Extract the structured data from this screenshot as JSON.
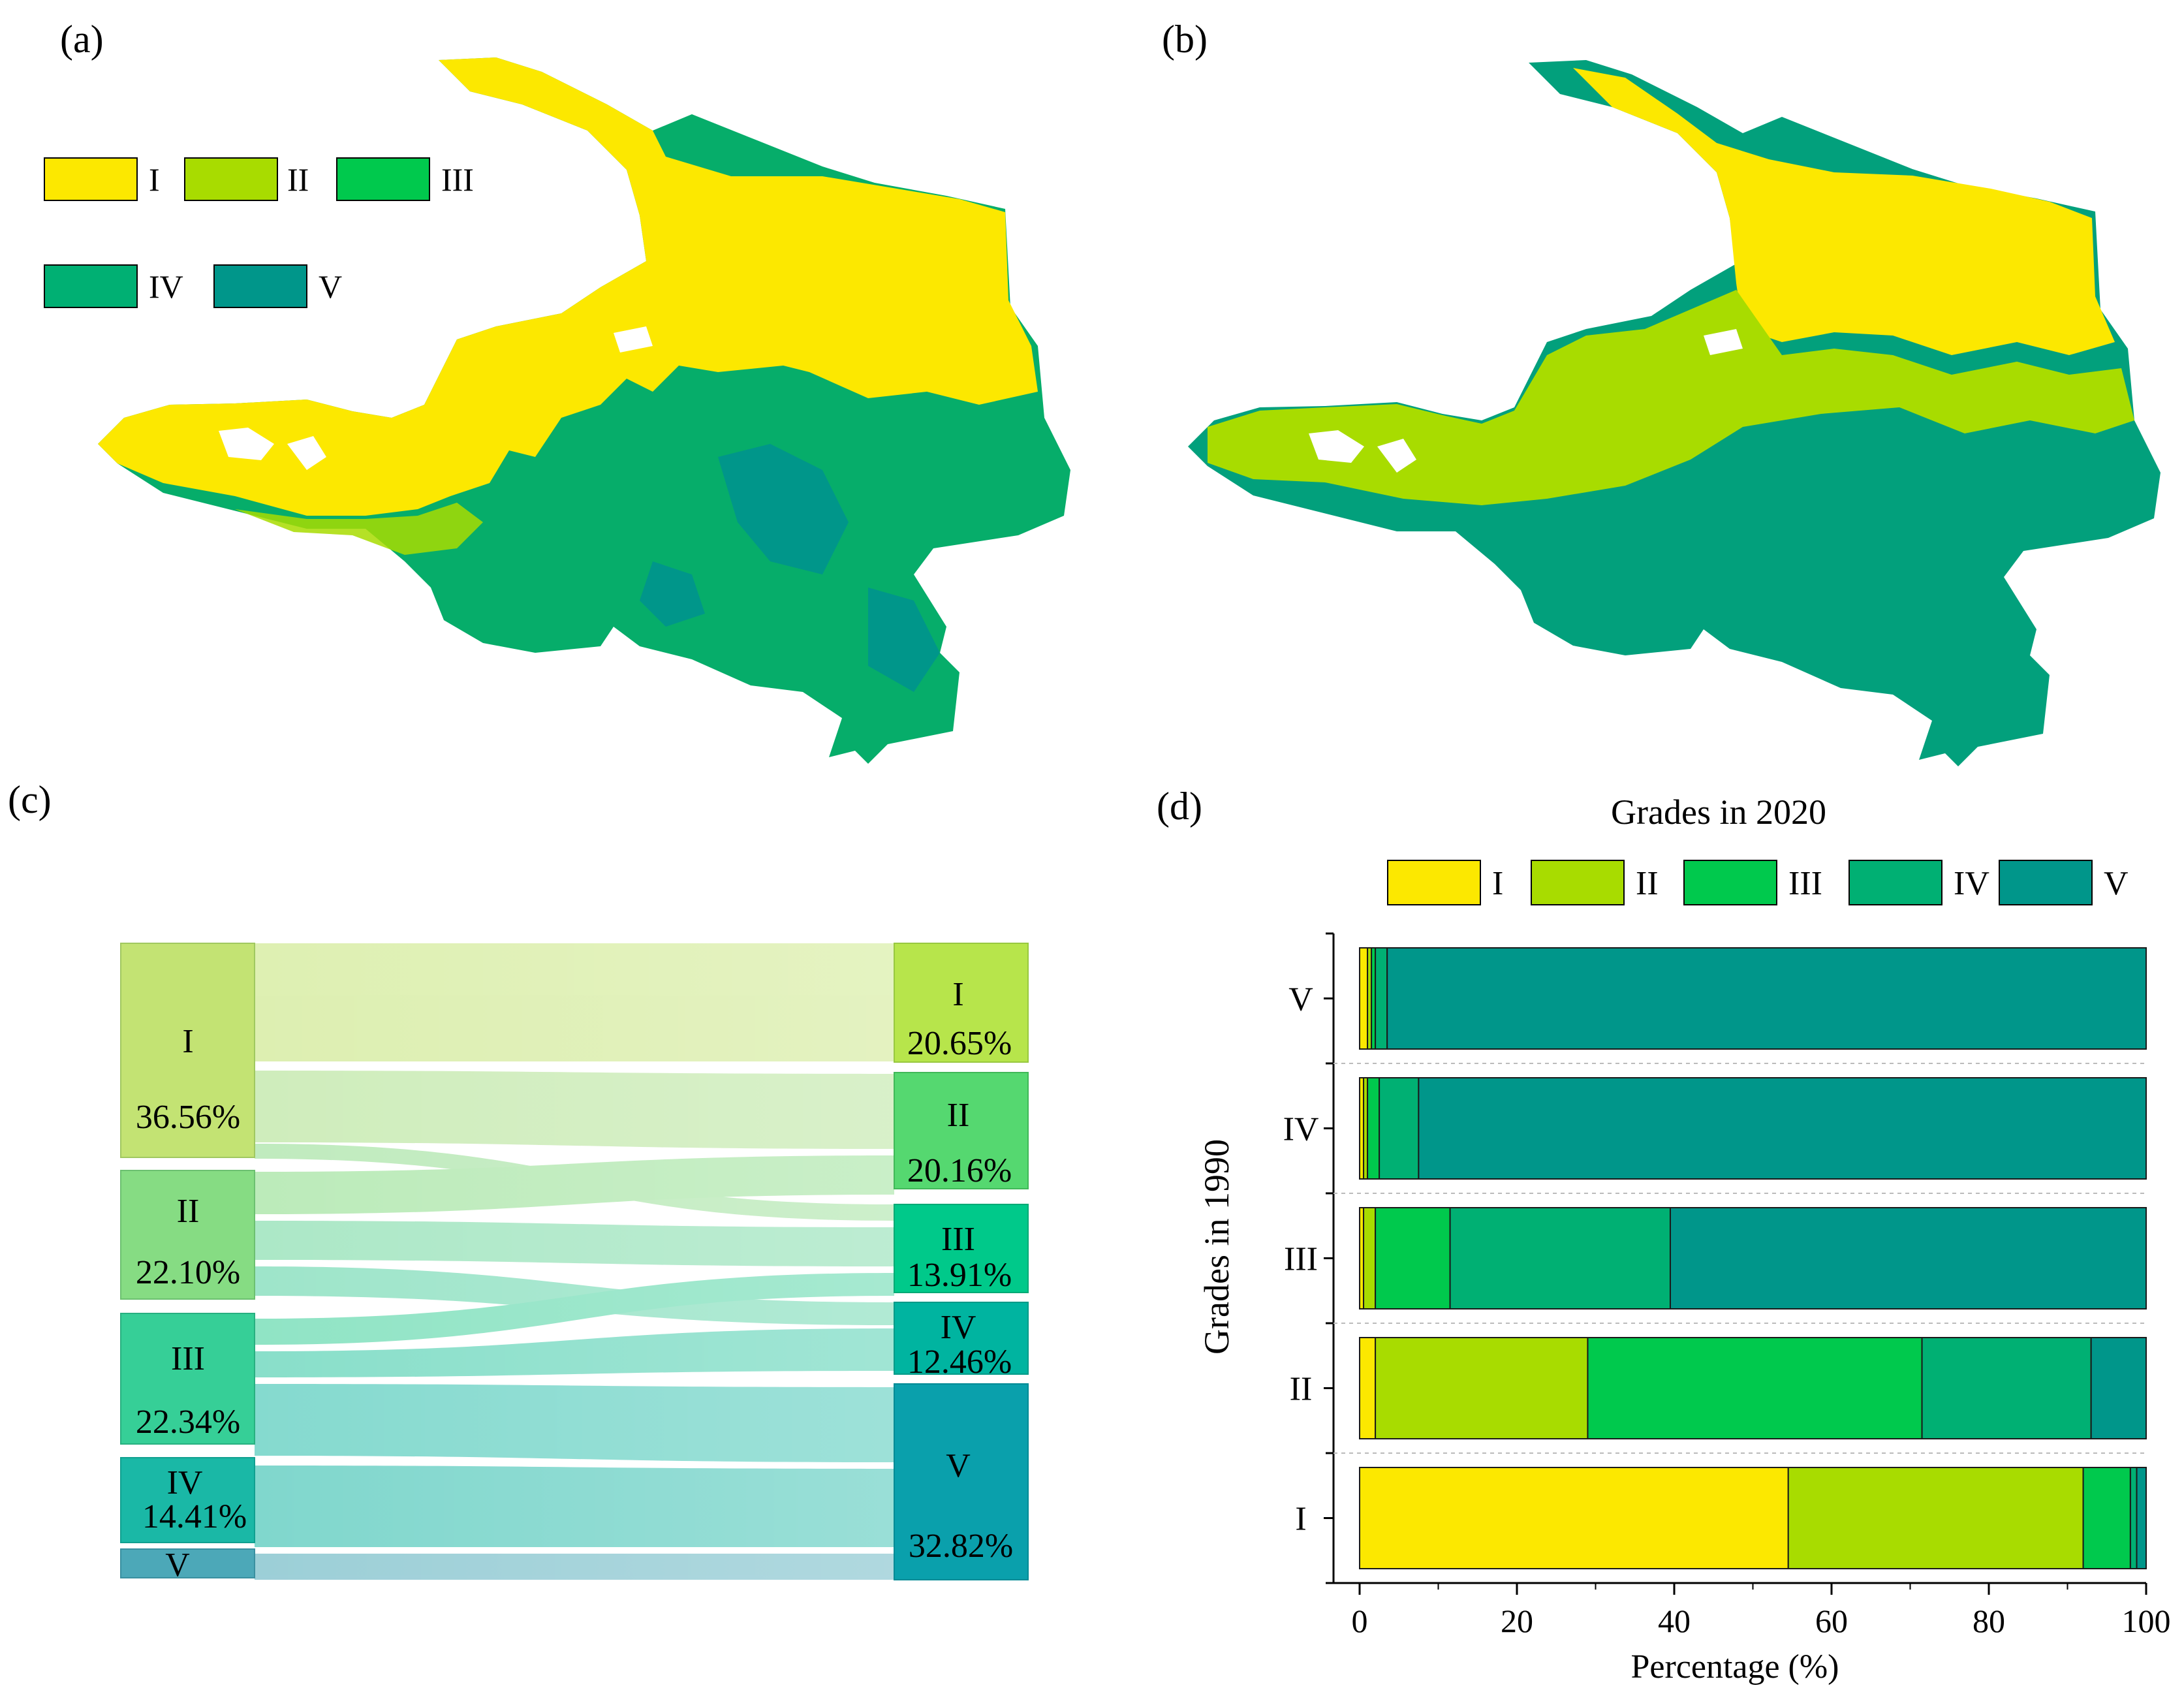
{
  "panels": {
    "a": "(a)",
    "b": "(b)",
    "c": "(c)",
    "d": "(d)"
  },
  "colors": {
    "I": "#fce800",
    "II": "#a8dc00",
    "III": "#00c94d",
    "IV": "#00b073",
    "V": "#00968a"
  },
  "map_legend": {
    "items": [
      {
        "label": "I",
        "color": "#fce800"
      },
      {
        "label": "II",
        "color": "#a8dc00"
      },
      {
        "label": "III",
        "color": "#00c94d"
      },
      {
        "label": "IV",
        "color": "#00b073"
      },
      {
        "label": "V",
        "color": "#00968a"
      }
    ]
  },
  "chart_data": [
    {
      "type": "sankey",
      "panel": "(c)",
      "left_nodes": [
        {
          "label": "I",
          "value": "36.56%",
          "color": "#c3e373"
        },
        {
          "label": "II",
          "value": "22.10%",
          "color": "#86dc83"
        },
        {
          "label": "III",
          "value": "22.34%",
          "color": "#36cf97"
        },
        {
          "label": "IV",
          "value": "14.41%",
          "color": "#1ab8a6"
        },
        {
          "label": "V",
          "value": "",
          "color": "#4ca8b8"
        }
      ],
      "right_nodes": [
        {
          "label": "I",
          "value": "20.65%",
          "color": "#b7e54b"
        },
        {
          "label": "II",
          "value": "20.16%",
          "color": "#55d870"
        },
        {
          "label": "III",
          "value": "13.91%",
          "color": "#00c98a"
        },
        {
          "label": "IV",
          "value": "12.46%",
          "color": "#00b4a0"
        },
        {
          "label": "V",
          "value": "32.82%",
          "color": "#0aa0ac"
        }
      ]
    },
    {
      "type": "stacked-bar-horizontal",
      "panel": "(d)",
      "title": "Grades in 2020",
      "xlabel": "Percentage (%)",
      "ylabel": "Grades in 1990",
      "xlim": [
        0,
        100
      ],
      "xticks": [
        "0",
        "20",
        "40",
        "60",
        "80",
        "100"
      ],
      "categories": [
        "I",
        "II",
        "III",
        "IV",
        "V"
      ],
      "series": [
        {
          "name": "I",
          "color": "#fce800",
          "values": [
            54.5,
            2.0,
            0.5,
            0.5,
            1.0
          ]
        },
        {
          "name": "II",
          "color": "#a8dc00",
          "values": [
            37.5,
            27.0,
            1.5,
            0.5,
            0.5
          ]
        },
        {
          "name": "III",
          "color": "#00c94d",
          "values": [
            6.0,
            42.5,
            9.5,
            1.5,
            0.5
          ]
        },
        {
          "name": "IV",
          "color": "#00b073",
          "values": [
            0.8,
            21.5,
            28.0,
            5.0,
            1.5
          ]
        },
        {
          "name": "V",
          "color": "#00968a",
          "values": [
            1.2,
            7.0,
            60.5,
            92.5,
            96.5
          ]
        }
      ]
    }
  ]
}
